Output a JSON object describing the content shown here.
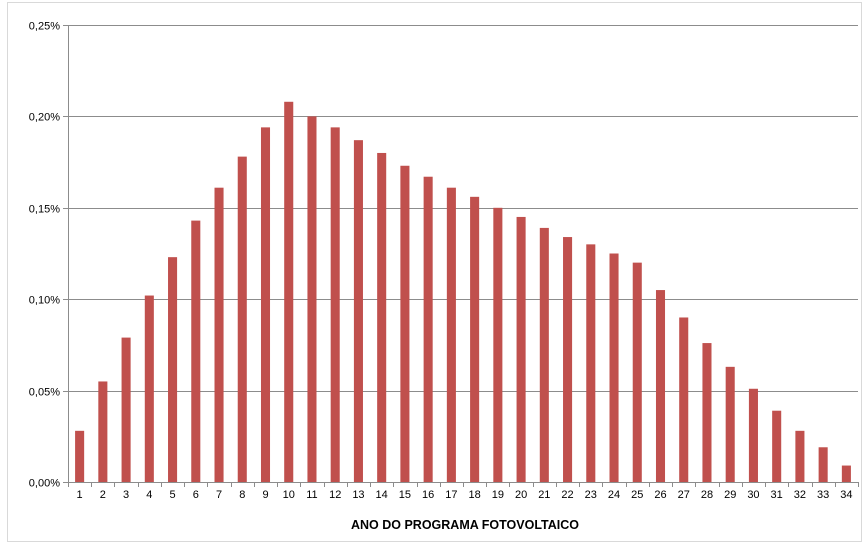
{
  "chart_data": {
    "type": "bar",
    "title": "",
    "xlabel": "ANO DO PROGRAMA FOTOVOLTAICO",
    "ylabel": "",
    "categories": [
      "1",
      "2",
      "3",
      "4",
      "5",
      "6",
      "7",
      "8",
      "9",
      "10",
      "11",
      "12",
      "13",
      "14",
      "15",
      "16",
      "17",
      "18",
      "19",
      "20",
      "21",
      "22",
      "23",
      "24",
      "25",
      "26",
      "27",
      "28",
      "29",
      "30",
      "31",
      "32",
      "33",
      "34"
    ],
    "values": [
      0.028,
      0.055,
      0.079,
      0.102,
      0.123,
      0.143,
      0.161,
      0.178,
      0.194,
      0.208,
      0.2,
      0.194,
      0.187,
      0.18,
      0.173,
      0.167,
      0.161,
      0.156,
      0.15,
      0.145,
      0.139,
      0.134,
      0.13,
      0.125,
      0.12,
      0.105,
      0.09,
      0.076,
      0.063,
      0.051,
      0.039,
      0.028,
      0.019,
      0.009
    ],
    "ylim": [
      0,
      0.25
    ],
    "yticks": [
      0,
      0.05,
      0.1,
      0.15,
      0.2,
      0.25
    ],
    "ytick_labels": [
      "0,00%",
      "0,05%",
      "0,10%",
      "0,15%",
      "0,20%",
      "0,25%"
    ],
    "grid": true,
    "legend": "none",
    "colors": {
      "bar": "#c0504d",
      "grid": "#8c8c8c",
      "axis": "#8c8c8c"
    }
  }
}
